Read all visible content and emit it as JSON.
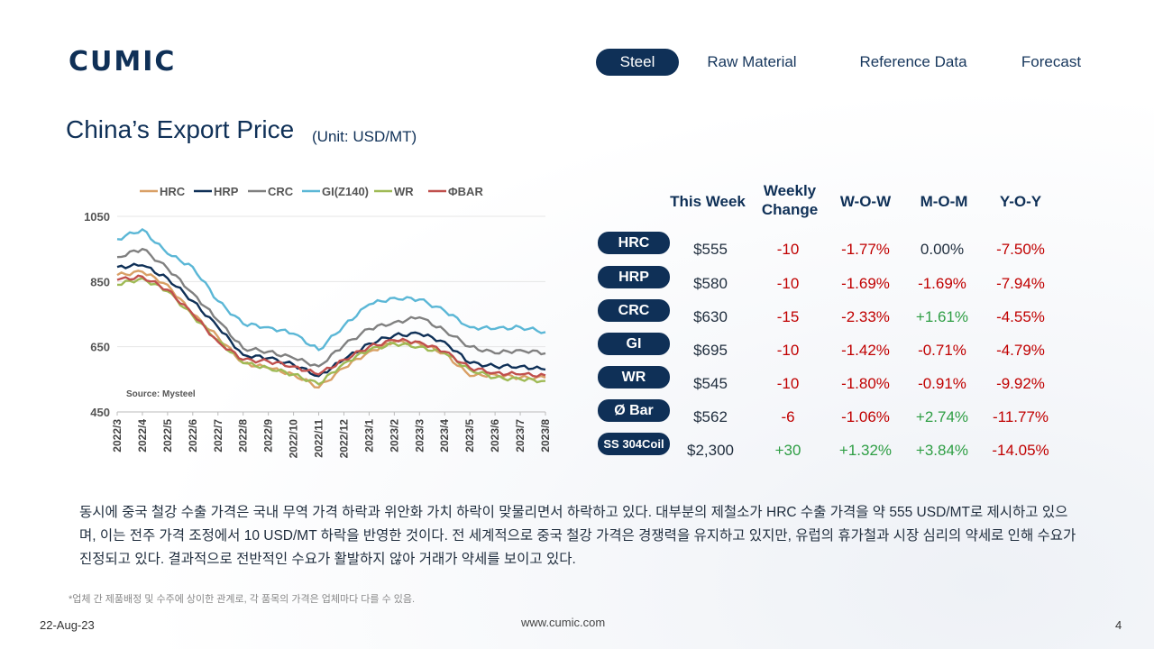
{
  "brand": {
    "logo_text": "CUMIC"
  },
  "nav": {
    "items": [
      {
        "label": "Steel",
        "active": true
      },
      {
        "label": "Raw Material",
        "active": false
      },
      {
        "label": "Reference Data",
        "active": false
      },
      {
        "label": "Forecast",
        "active": false
      }
    ]
  },
  "page": {
    "title": "China’s Export Price",
    "unit": "(Unit: USD/MT)"
  },
  "chart_data": {
    "type": "line",
    "title": "",
    "xlabel": "",
    "ylabel": "",
    "ylim": [
      450,
      1050
    ],
    "yticks": [
      450,
      650,
      850,
      1050
    ],
    "x": [
      "2022/3",
      "2022/4",
      "2022/5",
      "2022/6",
      "2022/7",
      "2022/8",
      "2022/9",
      "2022/10",
      "2022/11",
      "2022/12",
      "2023/1",
      "2023/2",
      "2023/3",
      "2023/4",
      "2023/5",
      "2023/6",
      "2023/7",
      "2023/8"
    ],
    "legend_position": "top",
    "source": "Source: Mysteel",
    "series": [
      {
        "name": "HRC",
        "color": "#d9a066",
        "values": [
          870,
          880,
          840,
          750,
          680,
          600,
          585,
          565,
          525,
          585,
          635,
          665,
          660,
          630,
          560,
          565,
          555,
          555
        ]
      },
      {
        "name": "HRP",
        "color": "#0f3057",
        "values": [
          895,
          900,
          860,
          790,
          710,
          625,
          615,
          595,
          560,
          610,
          660,
          685,
          690,
          665,
          600,
          590,
          590,
          580
        ]
      },
      {
        "name": "CRC",
        "color": "#808080",
        "values": [
          925,
          950,
          890,
          815,
          730,
          645,
          635,
          615,
          590,
          655,
          705,
          725,
          740,
          700,
          650,
          630,
          640,
          630
        ]
      },
      {
        "name": "GI(Z140)",
        "color": "#5bb7d6",
        "values": [
          980,
          1010,
          935,
          895,
          790,
          720,
          710,
          690,
          640,
          715,
          780,
          800,
          795,
          760,
          710,
          705,
          710,
          695
        ]
      },
      {
        "name": "WR",
        "color": "#9fba55",
        "values": [
          840,
          860,
          820,
          745,
          670,
          600,
          585,
          565,
          535,
          600,
          640,
          660,
          650,
          630,
          580,
          555,
          550,
          545
        ]
      },
      {
        "name": "ΦBAR",
        "color": "#c0504d",
        "values": [
          855,
          865,
          825,
          750,
          665,
          610,
          605,
          590,
          565,
          610,
          650,
          670,
          665,
          635,
          585,
          570,
          565,
          562
        ]
      }
    ]
  },
  "table": {
    "headers": {
      "this_week": "This Week",
      "weekly_change": "Weekly\nChange",
      "wow": "W-O-W",
      "mom": "M-O-M",
      "yoy": "Y-O-Y"
    },
    "rows": [
      {
        "product": "HRC",
        "price": "$555",
        "change": "-10",
        "wow": "-1.77%",
        "mom": "0.00%",
        "yoy": "-7.50%"
      },
      {
        "product": "HRP",
        "price": "$580",
        "change": "-10",
        "wow": "-1.69%",
        "mom": "-1.69%",
        "yoy": "-7.94%"
      },
      {
        "product": "CRC",
        "price": "$630",
        "change": "-15",
        "wow": "-2.33%",
        "mom": "+1.61%",
        "yoy": "-4.55%"
      },
      {
        "product": "GI",
        "price": "$695",
        "change": "-10",
        "wow": "-1.42%",
        "mom": "-0.71%",
        "yoy": "-4.79%"
      },
      {
        "product": "WR",
        "price": "$545",
        "change": "-10",
        "wow": "-1.80%",
        "mom": "-0.91%",
        "yoy": "-9.92%"
      },
      {
        "product": "Ø Bar",
        "price": "$562",
        "change": "-6",
        "wow": "-1.06%",
        "mom": "+2.74%",
        "yoy": "-11.77%"
      },
      {
        "product": "SS 304Coil",
        "price": "$2,300",
        "change": "+30",
        "wow": "+1.32%",
        "mom": "+3.84%",
        "yoy": "-14.05%"
      }
    ]
  },
  "body": {
    "paragraph": "동시에 중국 철강 수출 가격은 국내 무역 가격 하락과 위안화 가치 하락이 맞물리면서 하락하고 있다. 대부분의 제철소가 HRC 수출 가격을 약 555 USD/MT로 제시하고 있으며, 이는 전주 가격 조정에서 10 USD/MT 하락을 반영한 것이다. 전 세계적으로 중국 철강 가격은 경쟁력을 유지하고 있지만, 유럽의 휴가철과 시장 심리의 약세로 인해 수요가 진정되고 있다. 결과적으로 전반적인 수요가 활발하지 않아  거래가 약세를 보이고 있다.",
    "note": "*업체 간 제품배정 및 수주에 상이한 관계로, 각 품목의 가격은 업체마다 다를 수 있음."
  },
  "footer": {
    "date": "22-Aug-23",
    "url": "www.cumic.com",
    "page": "4"
  }
}
